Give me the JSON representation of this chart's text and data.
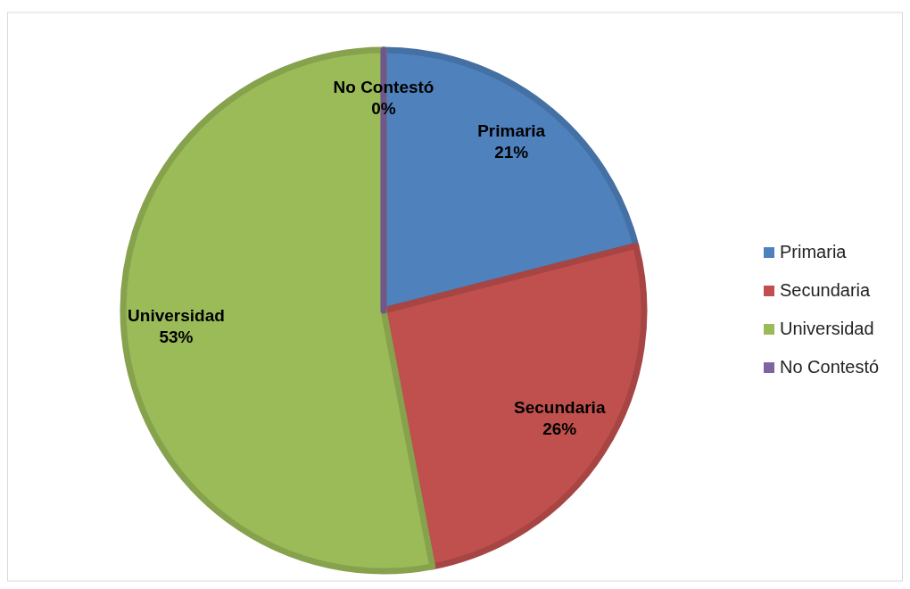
{
  "chart_data": {
    "type": "pie",
    "categories": [
      "Primaria",
      "Secundaria",
      "Universidad",
      "No Contestó"
    ],
    "values": [
      21,
      26,
      53,
      0
    ],
    "colors": [
      "#4f81bd",
      "#c0504d",
      "#9bbb59",
      "#8064a2"
    ],
    "value_labels": [
      "21%",
      "26%",
      "53%",
      "0%"
    ],
    "legend": "right"
  }
}
